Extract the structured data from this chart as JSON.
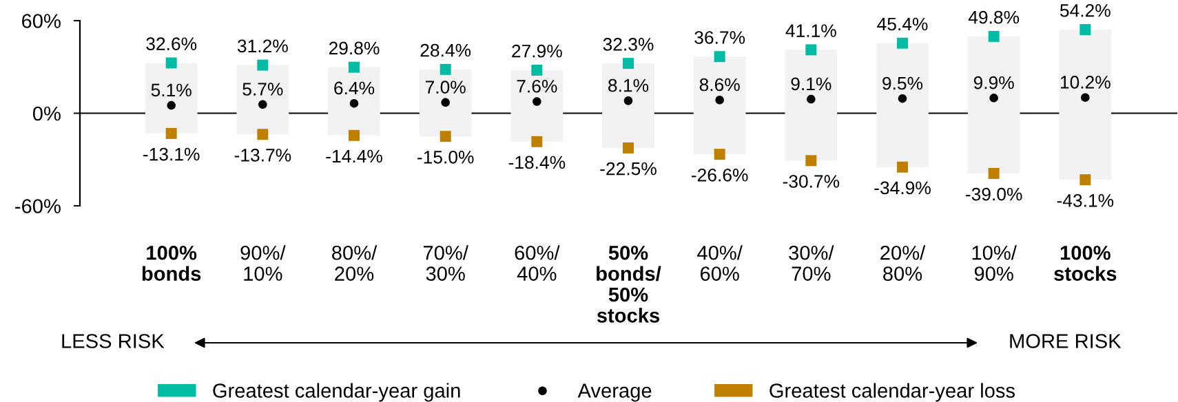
{
  "chart_data": {
    "type": "bar",
    "categories": [
      "100%\nbonds",
      "90%/\n10%",
      "80%/\n20%",
      "70%/\n30%",
      "60%/\n40%",
      "50%\nbonds/\n50%\nstocks",
      "40%/\n60%",
      "30%/\n70%",
      "20%/\n80%",
      "10%/\n90%",
      "100%\nstocks"
    ],
    "series": [
      {
        "color": "#f2f2f2",
        "base": [
          -13.1,
          -13.7,
          -14.4,
          -15.0,
          -18.4,
          -22.5,
          -26.6,
          -30.7,
          -34.9,
          -39.0,
          -43.1
        ],
        "values": [
          45.7,
          44.9,
          44.2,
          43.4,
          46.3,
          54.8,
          63.3,
          71.8,
          80.3,
          88.8,
          97.3
        ]
      },
      {
        "name": "Greatest calendar-year gain",
        "type": "scatter",
        "marker": "square",
        "color": "#00bca5",
        "values": [
          32.6,
          31.2,
          29.8,
          28.4,
          27.9,
          32.3,
          36.7,
          41.1,
          45.4,
          49.8,
          54.2
        ],
        "value_labels": [
          "32.6%",
          "31.2%",
          "29.8%",
          "28.4%",
          "27.9%",
          "32.3%",
          "36.7%",
          "41.1%",
          "45.4%",
          "49.8%",
          "54.2%"
        ]
      },
      {
        "name": "Average",
        "type": "scatter",
        "marker": "circle",
        "color": "#000000",
        "values": [
          5.1,
          5.7,
          6.4,
          7.0,
          7.6,
          8.1,
          8.6,
          9.1,
          9.5,
          9.9,
          10.2
        ],
        "value_labels": [
          "5.1%",
          "5.7%",
          "6.4%",
          "7.0%",
          "7.6%",
          "8.1%",
          "8.6%",
          "9.1%",
          "9.5%",
          "9.9%",
          "10.2%"
        ]
      },
      {
        "name": "Greatest calendar-year loss",
        "type": "scatter",
        "marker": "square",
        "color": "#bf8000",
        "values": [
          -13.1,
          -13.7,
          -14.4,
          -15.0,
          -18.4,
          -22.5,
          -26.6,
          -30.7,
          -34.9,
          -39.0,
          -43.1
        ],
        "value_labels": [
          "-13.1%",
          "-13.7%",
          "-14.4%",
          "-15.0%",
          "-18.4%",
          "-22.5%",
          "-26.6%",
          "-30.7%",
          "-34.9%",
          "-39.0%",
          "-43.1%"
        ]
      }
    ],
    "ylim": [
      -60,
      60
    ],
    "yticks": [
      {
        "value": -60,
        "label": "-60%"
      },
      {
        "value": 0,
        "label": "0%"
      },
      {
        "value": 60,
        "label": "60%"
      }
    ],
    "legend": "bottom",
    "annotations": [
      "LESS RISK",
      "MORE RISK"
    ]
  }
}
